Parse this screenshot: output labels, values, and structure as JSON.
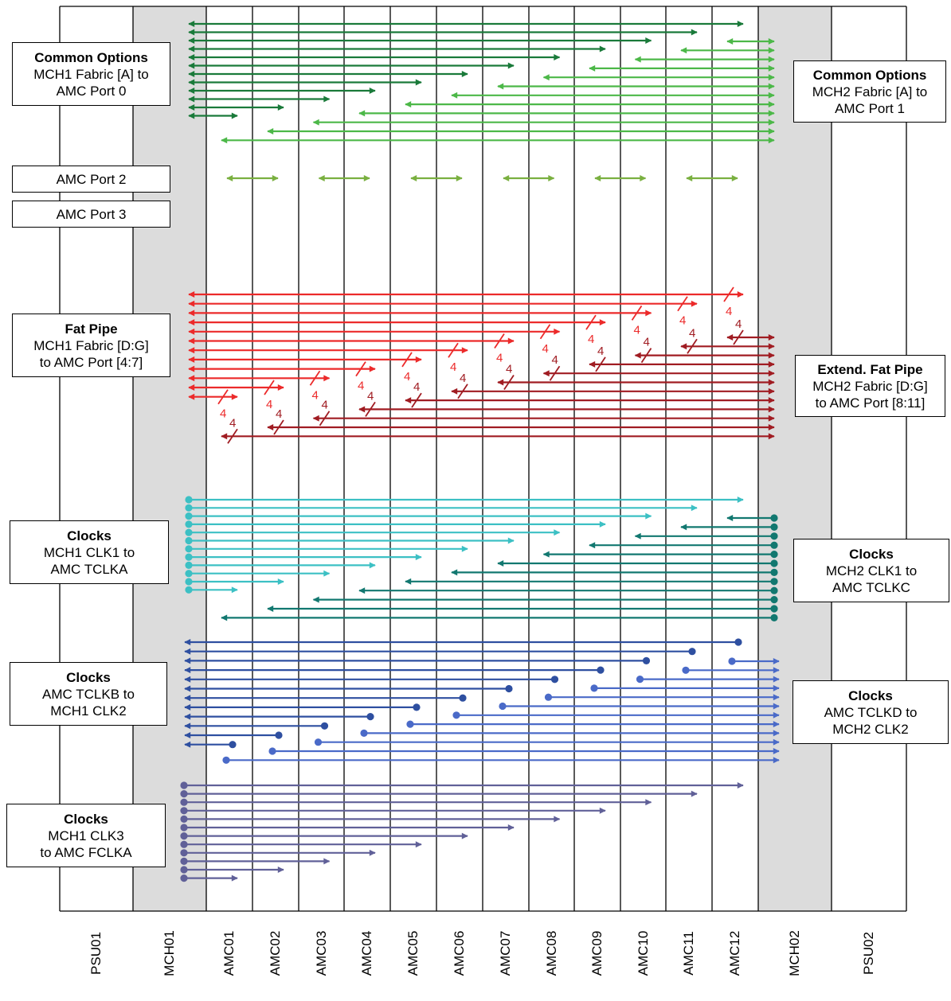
{
  "slots": [
    {
      "id": "PSU01",
      "kind": "psu"
    },
    {
      "id": "MCH01",
      "kind": "mch"
    },
    {
      "id": "AMC01",
      "kind": "amc"
    },
    {
      "id": "AMC02",
      "kind": "amc"
    },
    {
      "id": "AMC03",
      "kind": "amc"
    },
    {
      "id": "AMC04",
      "kind": "amc"
    },
    {
      "id": "AMC05",
      "kind": "amc"
    },
    {
      "id": "AMC06",
      "kind": "amc"
    },
    {
      "id": "AMC07",
      "kind": "amc"
    },
    {
      "id": "AMC08",
      "kind": "amc"
    },
    {
      "id": "AMC09",
      "kind": "amc"
    },
    {
      "id": "AMC10",
      "kind": "amc"
    },
    {
      "id": "AMC11",
      "kind": "amc"
    },
    {
      "id": "AMC12",
      "kind": "amc"
    },
    {
      "id": "MCH02",
      "kind": "mch"
    },
    {
      "id": "PSU02",
      "kind": "psu"
    }
  ],
  "labels": {
    "common_left": {
      "title": "Common Options",
      "lines": [
        "MCH1 Fabric [A] to",
        "AMC Port 0"
      ]
    },
    "common_right": {
      "title": "Common Options",
      "lines": [
        "MCH2 Fabric [A] to",
        "AMC Port 1"
      ]
    },
    "port2": {
      "title": "",
      "lines": [
        "AMC Port 2"
      ]
    },
    "port3": {
      "title": "",
      "lines": [
        "AMC Port 3"
      ]
    },
    "fatpipe_left": {
      "title": "Fat Pipe",
      "lines": [
        "MCH1 Fabric [D:G]",
        "to AMC Port [4:7]"
      ]
    },
    "fatpipe_right": {
      "title": "Extend. Fat Pipe",
      "lines": [
        "MCH2 Fabric [D:G]",
        "to AMC Port [8:11]"
      ]
    },
    "clk1_left": {
      "title": "Clocks",
      "lines": [
        "MCH1 CLK1 to",
        "AMC TCLKA"
      ]
    },
    "clk1_right": {
      "title": "Clocks",
      "lines": [
        "MCH2 CLK1 to",
        "AMC TCLKC"
      ]
    },
    "clk2_left": {
      "title": "Clocks",
      "lines": [
        "AMC TCLKB to",
        "MCH1 CLK2"
      ]
    },
    "clk2_right": {
      "title": "Clocks",
      "lines": [
        "AMC TCLKD to",
        "MCH2 CLK2"
      ]
    },
    "clk3_left": {
      "title": "Clocks",
      "lines": [
        "MCH1 CLK3",
        "to AMC FCLKA"
      ]
    }
  },
  "bus_width_label": "4",
  "colors": {
    "mch1_fabric_a": "#1a7a3a",
    "mch2_fabric_a": "#4cb848",
    "amc_port_2_3": "#7ab040",
    "fat_pipe": "#ec2a2a",
    "ext_fat_pipe": "#a01c22",
    "mch1_clk1": "#3cc0c4",
    "mch2_clk1": "#127870",
    "clkb_to_mch1": "#2e4fa0",
    "clkd_to_mch2": "#4a6ac8",
    "mch1_clk3": "#606098",
    "mch_slot_fill": "#dcdcdc"
  }
}
